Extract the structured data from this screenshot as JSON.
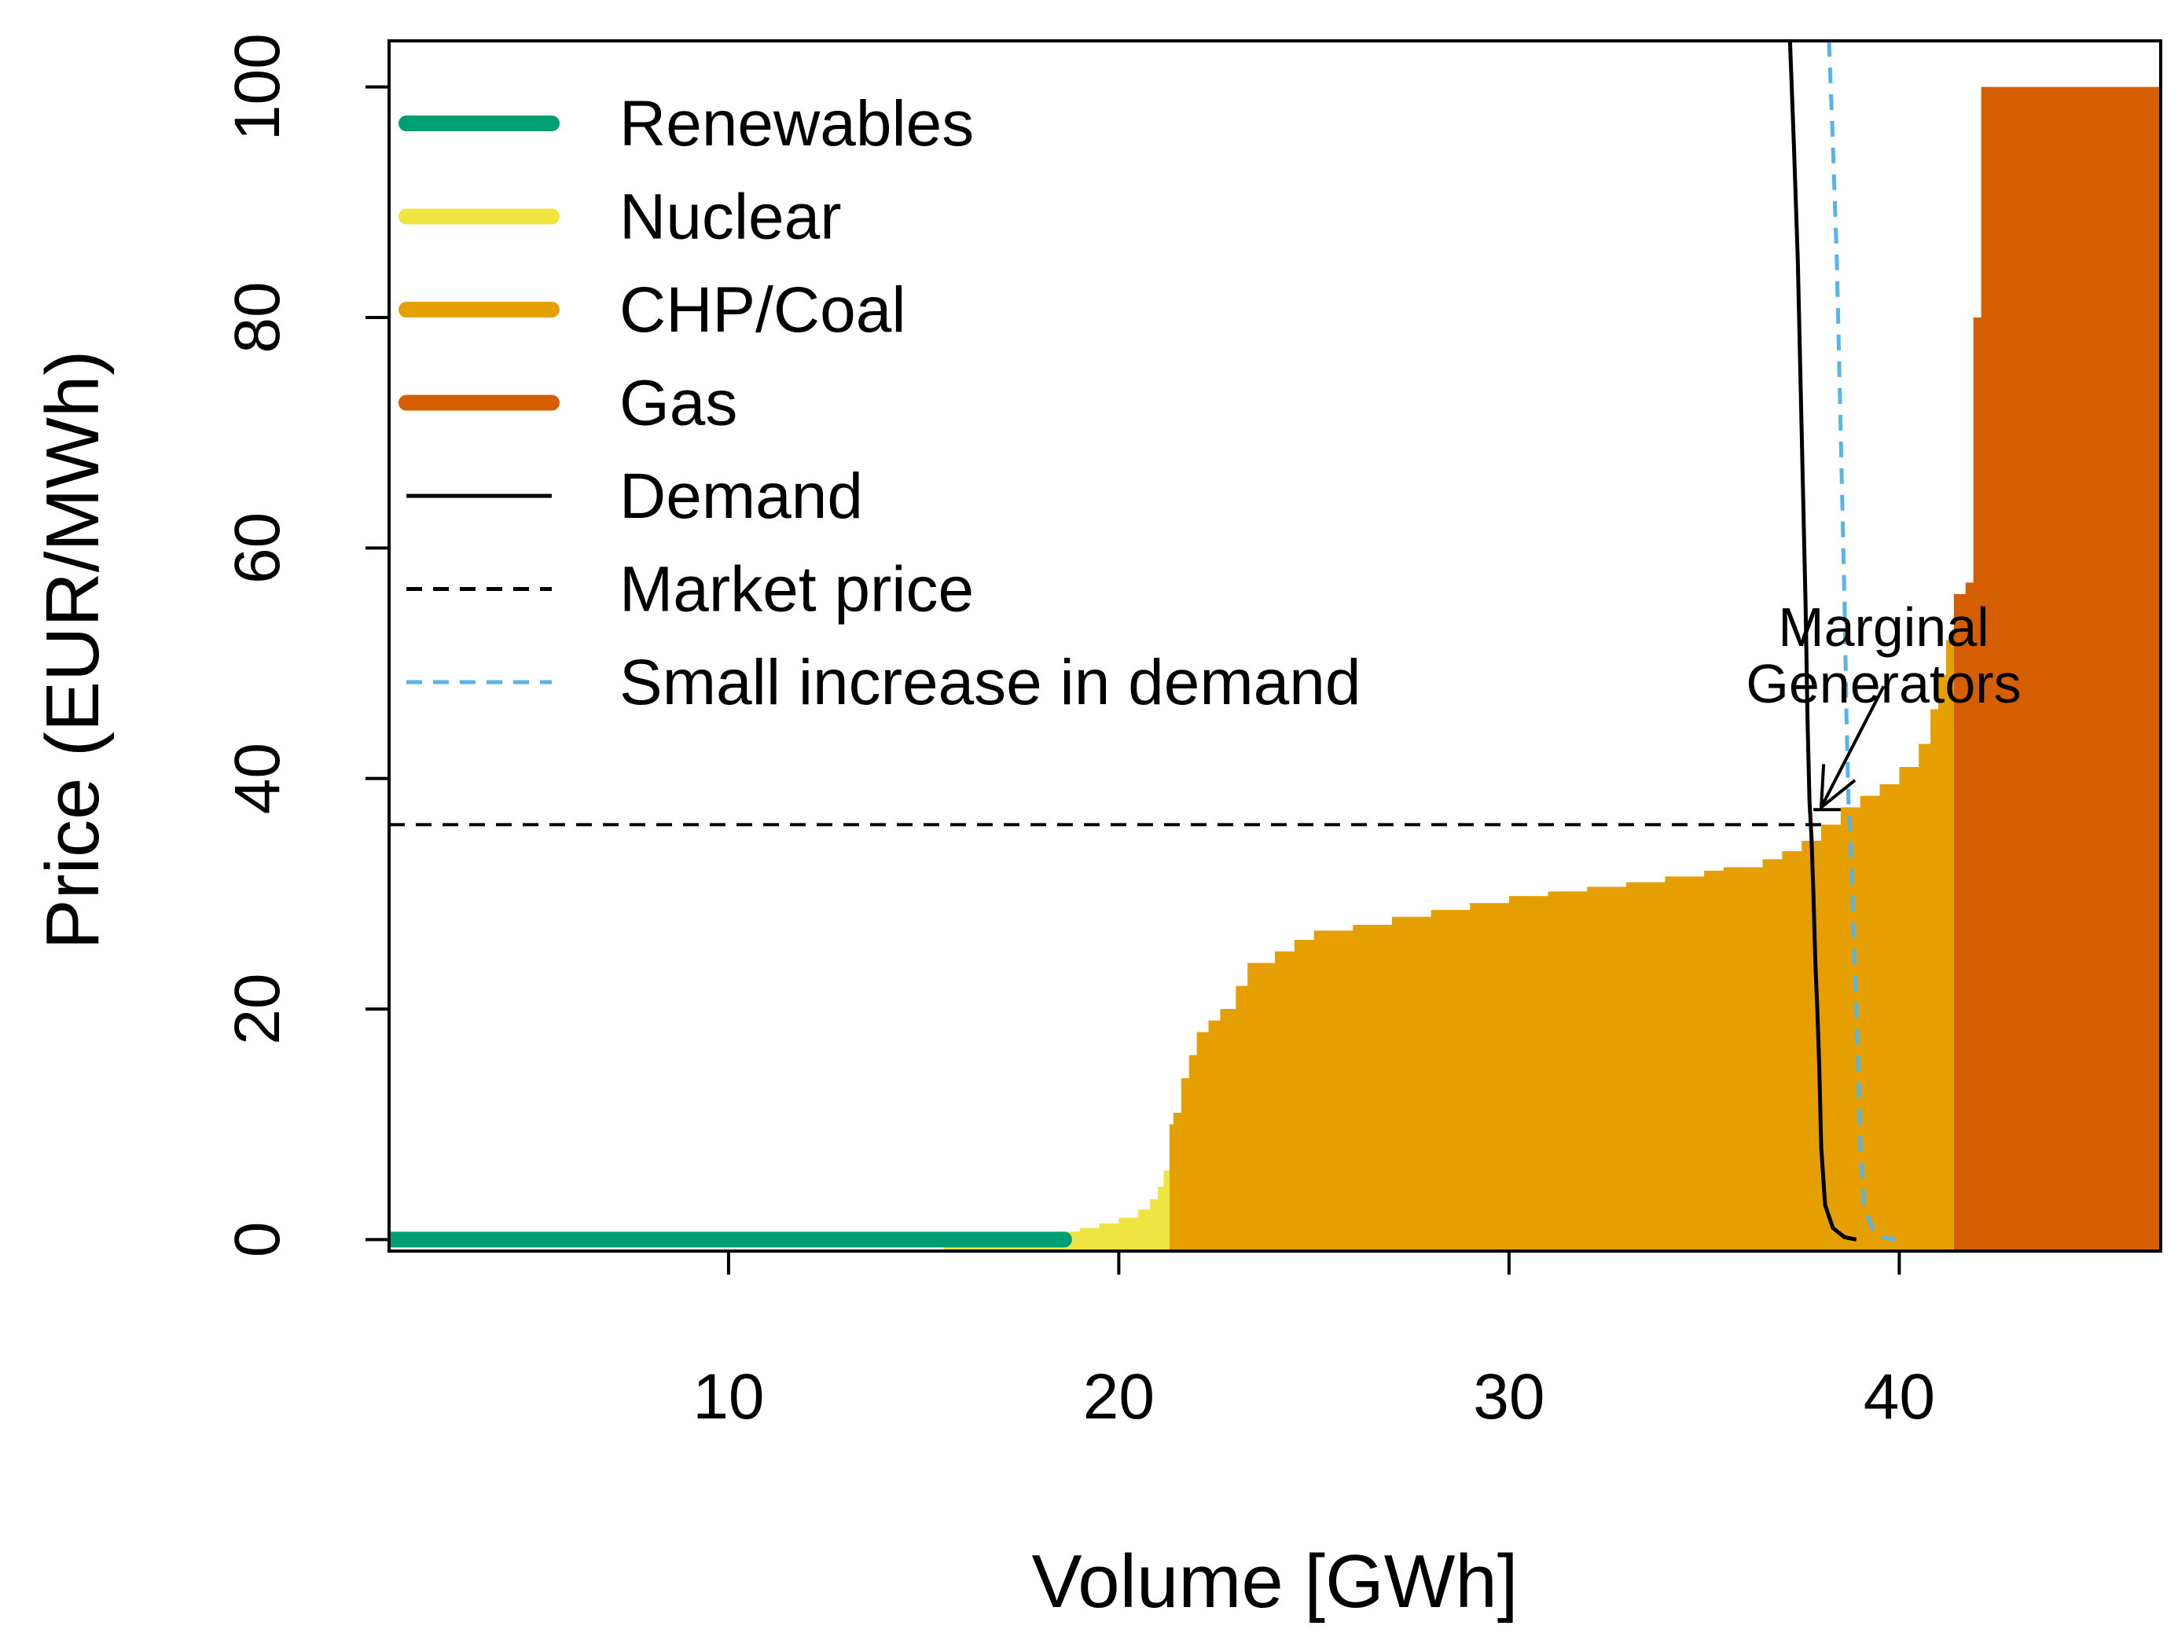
{
  "chart_data": {
    "type": "area",
    "title": "",
    "xlabel": "Volume [GWh]",
    "ylabel": "Price (EUR/MWh)",
    "xlim": [
      1.3,
      46.7
    ],
    "ylim": [
      -1,
      104
    ],
    "xticks": [
      10,
      20,
      30,
      40
    ],
    "yticks": [
      0,
      20,
      40,
      60,
      80,
      100
    ],
    "grid": false,
    "legend_position": "top-left",
    "colors": {
      "renewables": "#009E73",
      "nuclear": "#F0E442",
      "chp_coal": "#E69F00",
      "gas": "#D55E00",
      "demand": "#000000",
      "market_price": "#000000",
      "small_increase": "#56B4E9"
    },
    "legend": [
      {
        "key": "renewables",
        "label": "Renewables",
        "style": "thick"
      },
      {
        "key": "nuclear",
        "label": "Nuclear",
        "style": "thick"
      },
      {
        "key": "chp_coal",
        "label": "CHP/Coal",
        "style": "thick"
      },
      {
        "key": "gas",
        "label": "Gas",
        "style": "thick"
      },
      {
        "key": "demand",
        "label": "Demand",
        "style": "solid"
      },
      {
        "key": "market_price",
        "label": "Market price",
        "style": "dashed"
      },
      {
        "key": "small_increase",
        "label": "Small increase in demand",
        "style": "dashed"
      }
    ],
    "supply_series": [
      {
        "name": "Renewables",
        "key": "renewables",
        "x": [
          1.3,
          18.6
        ],
        "y": [
          0,
          0
        ]
      },
      {
        "name": "Nuclear",
        "key": "nuclear",
        "x": [
          15.5,
          16.5,
          17.5,
          18.5,
          19.0,
          19.5,
          20.0,
          20.5,
          20.8,
          21.0,
          21.15,
          21.3
        ],
        "y": [
          0,
          0.1,
          0.3,
          0.7,
          1.0,
          1.4,
          1.9,
          2.6,
          3.5,
          4.6,
          6.0,
          8.5
        ]
      },
      {
        "name": "CHP/Coal",
        "key": "chp_coal",
        "x": [
          21.3,
          21.4,
          21.6,
          21.8,
          22.0,
          22.3,
          22.6,
          23.0,
          23.3,
          24.0,
          24.5,
          25.0,
          26.0,
          27.0,
          28.0,
          29.0,
          30.0,
          31.0,
          32.0,
          33.0,
          34.0,
          35.0,
          35.5,
          36.5,
          37.0,
          37.5,
          38.0,
          38.5,
          39.0,
          39.5,
          40.0,
          40.5,
          40.8,
          41.0,
          41.2,
          41.4
        ],
        "y": [
          10,
          11,
          14,
          16,
          18,
          19,
          20,
          22,
          24,
          25,
          26,
          26.8,
          27.3,
          28,
          28.6,
          29.2,
          29.8,
          30.2,
          30.6,
          31.0,
          31.5,
          32.0,
          32.3,
          33.0,
          33.7,
          34.6,
          36.0,
          37.5,
          38.5,
          39.5,
          41.0,
          43.0,
          46.0,
          49.0,
          52.0,
          55.0
        ]
      },
      {
        "name": "Gas",
        "key": "gas",
        "x": [
          41.4,
          41.7,
          41.9,
          42.1,
          46.7
        ],
        "y": [
          56,
          57,
          80,
          100,
          104
        ]
      }
    ],
    "demand": {
      "x": [
        37.2,
        37.3,
        37.4,
        37.5,
        37.6,
        37.65,
        37.7,
        37.75,
        37.8,
        37.85,
        37.9,
        37.95,
        38.0,
        38.1,
        38.3,
        38.6,
        38.9
      ],
      "y": [
        104,
        95,
        85,
        70,
        55,
        45,
        38,
        35,
        30,
        24,
        20,
        15,
        8,
        3,
        1,
        0.2,
        0
      ]
    },
    "small_increase": {
      "x": [
        38.2,
        38.3,
        38.4,
        38.5,
        38.6,
        38.65,
        38.7,
        38.75,
        38.8,
        38.85,
        38.9,
        38.95,
        39.0,
        39.1,
        39.3,
        39.6,
        39.9
      ],
      "y": [
        104,
        95,
        85,
        70,
        55,
        45,
        38,
        35,
        30,
        24,
        20,
        15,
        8,
        3,
        1,
        0.2,
        0
      ]
    },
    "market_price": {
      "y": 36,
      "x_start": 1.3,
      "x_end": 38.0
    },
    "annotation": {
      "line1": "Marginal",
      "line2": "Generators",
      "text_x": 39.6,
      "text_y": 53,
      "arrow_from": [
        39.6,
        48
      ],
      "arrow_to": [
        38.0,
        37.5
      ],
      "marker_x": [
        37.8,
        38.5
      ],
      "marker_y": 37.3
    }
  }
}
